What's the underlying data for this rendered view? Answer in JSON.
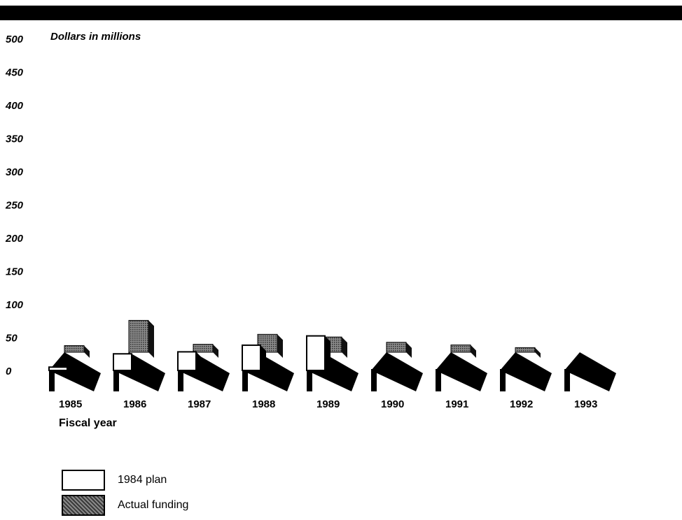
{
  "chart_data": {
    "type": "bar",
    "title": "",
    "ylabel": "Dollars in millions",
    "xlabel": "Fiscal year",
    "ylim": [
      0,
      500
    ],
    "yticks": [
      500,
      450,
      400,
      350,
      300,
      250,
      200,
      150,
      100,
      50,
      0
    ],
    "categories": [
      "1985",
      "1986",
      "1987",
      "1988",
      "1989",
      "1990",
      "1991",
      "1992",
      "1993"
    ],
    "series": [
      {
        "name": "1984 plan",
        "values": [
          5,
          25,
          28,
          38,
          52,
          0,
          0,
          0,
          0
        ],
        "color": "#ffffff"
      },
      {
        "name": "Actual funding",
        "values": [
          10,
          48,
          12,
          27,
          23,
          15,
          11,
          7,
          0
        ],
        "color": "#5a5a5a"
      }
    ],
    "legend_position": "bottom-left",
    "grid": false
  }
}
